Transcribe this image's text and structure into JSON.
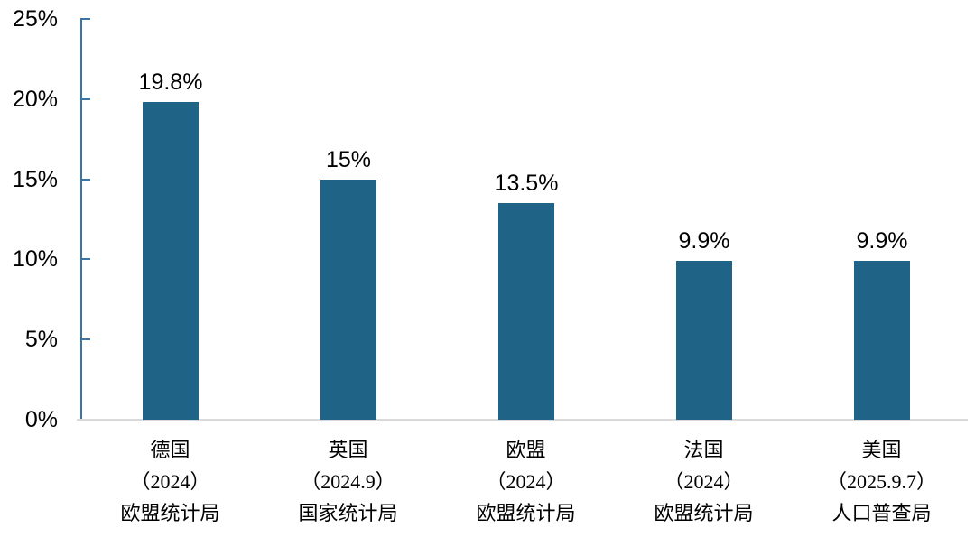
{
  "chart_data": {
    "type": "bar",
    "title": "",
    "xlabel": "",
    "ylabel": "",
    "ylim": [
      0,
      25
    ],
    "grid": false,
    "legend": "none",
    "y_ticks": [
      {
        "value": 25,
        "label": "25%"
      },
      {
        "value": 20,
        "label": "20%"
      },
      {
        "value": 15,
        "label": "15%"
      },
      {
        "value": 10,
        "label": "10%"
      },
      {
        "value": 5,
        "label": "5%"
      },
      {
        "value": 0,
        "label": "0%"
      }
    ],
    "categories": [
      [
        "德国",
        "（2024）",
        "欧盟统计局"
      ],
      [
        "英国",
        "（2024.9）",
        "国家统计局"
      ],
      [
        "欧盟",
        "（2024）",
        "欧盟统计局"
      ],
      [
        "法国",
        "（2024）",
        "欧盟统计局"
      ],
      [
        "美国",
        "（2025.9.7）",
        "人口普查局"
      ]
    ],
    "values": [
      19.8,
      15,
      13.5,
      9.9,
      9.9
    ],
    "value_labels": [
      "19.8%",
      "15%",
      "13.5%",
      "9.9%",
      "9.9%"
    ],
    "colors": {
      "bar": "#1F6387",
      "axis_line": "#3B74A5",
      "baseline": "#D9D9D9",
      "text": "#000000"
    }
  }
}
